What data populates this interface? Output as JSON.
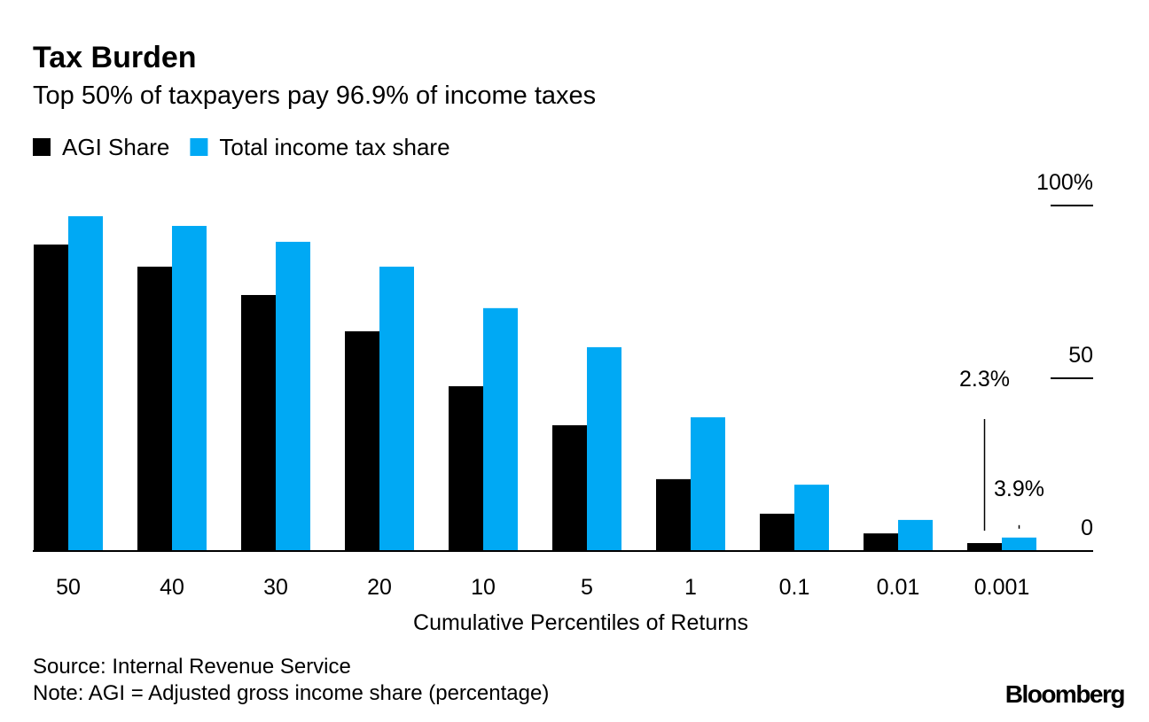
{
  "chart_data": {
    "type": "bar",
    "title": "Tax Burden",
    "subtitle": "Top 50% of taxpayers pay 96.9% of income taxes",
    "x_label": "Cumulative Percentiles of Returns",
    "categories": [
      "50",
      "40",
      "30",
      "20",
      "10",
      "5",
      "1",
      "0.1",
      "0.01",
      "0.001"
    ],
    "series": [
      {
        "name": "AGI Share",
        "color": "#000000",
        "values": [
          88.7,
          82.3,
          74.1,
          63.6,
          47.7,
          36.4,
          20.8,
          10.8,
          5.1,
          2.3
        ],
        "value_labels": [
          null,
          null,
          null,
          null,
          null,
          null,
          null,
          null,
          null,
          "2.3%"
        ]
      },
      {
        "name": "Total income tax share",
        "color": "#00a9f4",
        "values": [
          96.9,
          94.1,
          89.5,
          82.3,
          70.3,
          59.0,
          38.7,
          19.2,
          9.0,
          3.9
        ],
        "value_labels": [
          null,
          null,
          null,
          null,
          null,
          null,
          null,
          null,
          null,
          "3.9%"
        ]
      }
    ],
    "ylim": [
      0,
      100
    ],
    "yticks": [
      0,
      50,
      {
        "value": 100,
        "label": "100%"
      }
    ],
    "source": "Source: Internal Revenue Service",
    "note": "Note: AGI = Adjusted gross income share (percentage)",
    "brand": "Bloomberg"
  }
}
